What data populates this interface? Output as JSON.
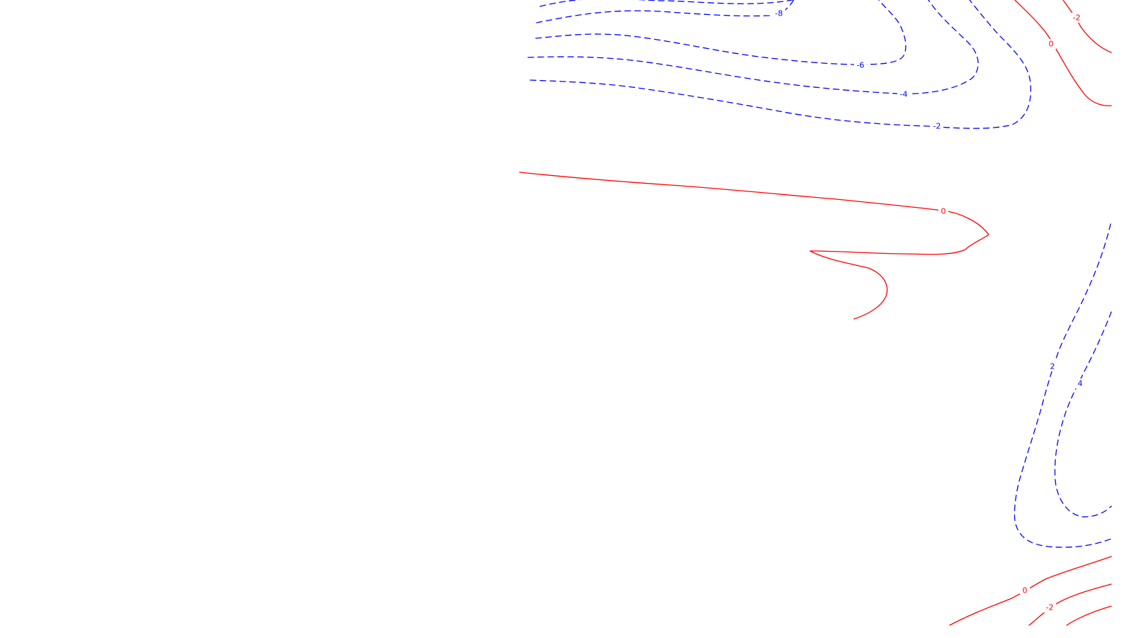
{
  "map": {
    "background_color": "#ffffff",
    "positive_contour": {
      "color": "#0000ff",
      "line_style": "dashed"
    },
    "zero_and_negative_contour": {
      "color": "#ff0000",
      "line_style": "solid"
    },
    "contour_labels": [
      {
        "id": "top-neg8",
        "text": "-8",
        "level": -8
      },
      {
        "id": "top-neg6",
        "text": "-6",
        "level": -6
      },
      {
        "id": "top-neg4",
        "text": "-4",
        "level": -4
      },
      {
        "id": "top-neg2",
        "text": "-2",
        "level": -2
      },
      {
        "id": "top-right-neg2",
        "text": "-2",
        "level": -2
      },
      {
        "id": "top-right-0",
        "text": "0",
        "level": 0
      },
      {
        "id": "middle-0",
        "text": "0",
        "level": 0
      },
      {
        "id": "right-2",
        "text": "2",
        "level": 2
      },
      {
        "id": "right-4",
        "text": "4",
        "level": 4
      },
      {
        "id": "bottom-0",
        "text": "0",
        "level": 0
      },
      {
        "id": "bottom-neg2",
        "text": "-2",
        "level": -2
      }
    ]
  }
}
